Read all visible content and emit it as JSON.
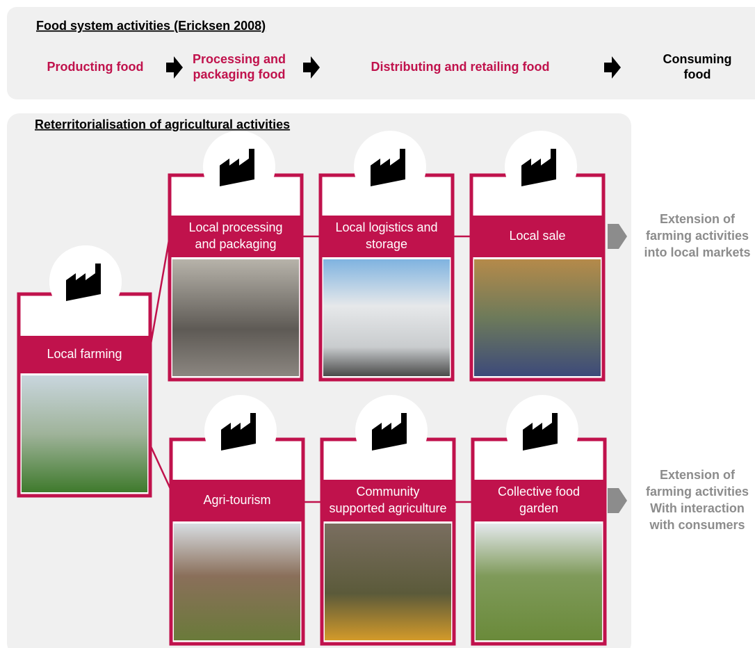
{
  "food_system": {
    "title": "Food system activities (Ericksen 2008)",
    "steps": [
      [
        "Producting food"
      ],
      [
        "Processing and",
        "packaging food"
      ],
      [
        "Distributing and retailing food"
      ],
      [
        "Consuming",
        "food"
      ]
    ]
  },
  "reterritorialisation": {
    "title": "Reterritorialisation of agricultural activities",
    "origin": [
      "Local farming"
    ],
    "rows": [
      {
        "boxes": [
          [
            "Local processing",
            "and packaging"
          ],
          [
            "Local logistics and",
            "storage"
          ],
          [
            "Local sale"
          ]
        ],
        "extension": [
          "Extension of",
          "farming activities",
          "into local markets"
        ]
      },
      {
        "boxes": [
          [
            "Agri-tourism"
          ],
          [
            "Community",
            "supported agriculture"
          ],
          [
            "Collective food",
            "garden"
          ]
        ],
        "extension": [
          "Extension of",
          "farming activities",
          "With interaction",
          "with consumers"
        ]
      }
    ]
  }
}
